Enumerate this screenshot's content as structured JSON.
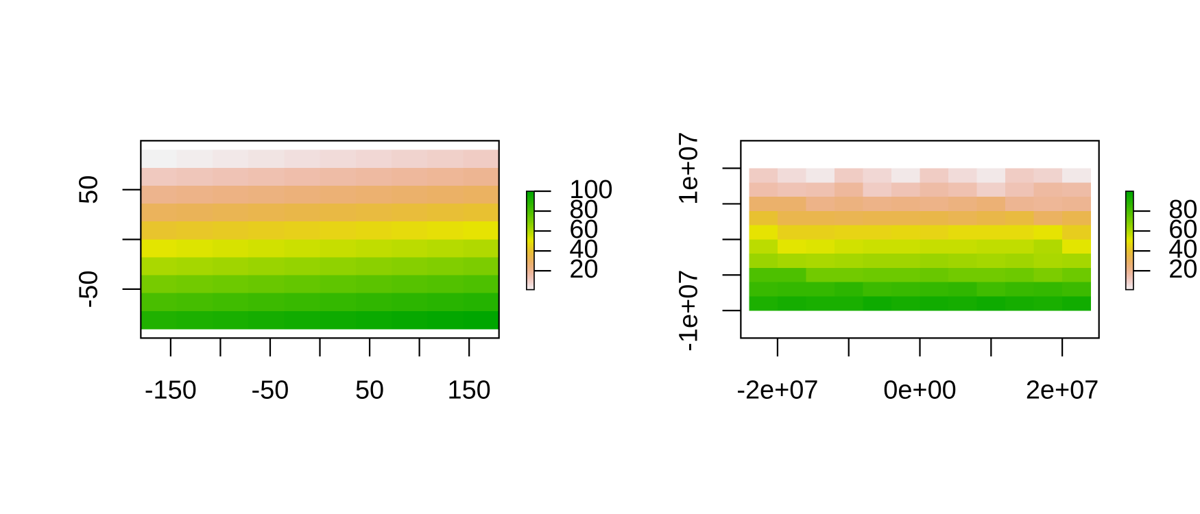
{
  "chart_data": [
    {
      "type": "heatmap",
      "colormap": "terrain-reversed",
      "xlim": [
        -180,
        180
      ],
      "ylim": [
        -99.2,
        99.2
      ],
      "xbins": [
        -180,
        -144,
        -108,
        -72,
        -36,
        0,
        36,
        72,
        108,
        144,
        180
      ],
      "ybins": [
        90,
        72,
        54,
        36,
        18,
        0,
        -18,
        -36,
        -54,
        -72,
        -90
      ],
      "values": [
        [
          1,
          2,
          3,
          4,
          5,
          6,
          7,
          8,
          9,
          10
        ],
        [
          11,
          12,
          13,
          14,
          15,
          16,
          17,
          18,
          19,
          20
        ],
        [
          21,
          22,
          23,
          24,
          25,
          26,
          27,
          28,
          29,
          30
        ],
        [
          31,
          32,
          33,
          34,
          35,
          36,
          37,
          38,
          39,
          40
        ],
        [
          41,
          42,
          43,
          44,
          45,
          46,
          47,
          48,
          49,
          50
        ],
        [
          51,
          52,
          53,
          54,
          55,
          56,
          57,
          58,
          59,
          60
        ],
        [
          61,
          62,
          63,
          64,
          65,
          66,
          67,
          68,
          69,
          70
        ],
        [
          71,
          72,
          73,
          74,
          75,
          76,
          77,
          78,
          79,
          80
        ],
        [
          81,
          82,
          83,
          84,
          85,
          86,
          87,
          88,
          89,
          90
        ],
        [
          91,
          92,
          93,
          94,
          95,
          96,
          97,
          98,
          99,
          100
        ]
      ],
      "xticks": [
        -150,
        {
          "value": -100,
          "label": null
        },
        -50,
        {
          "value": 0,
          "label": null
        },
        50,
        {
          "value": 100,
          "label": null
        },
        150
      ],
      "yticks": [
        -50,
        {
          "value": 0,
          "label": null
        },
        50
      ],
      "zlim": [
        1,
        100
      ],
      "zticks": [
        20,
        40,
        60,
        80,
        100
      ]
    },
    {
      "type": "heatmap",
      "colormap": "terrain-reversed",
      "xlim": [
        -25160000,
        25160000
      ],
      "ylim": [
        -13870000,
        13870000
      ],
      "xbins": [
        -24000000,
        -20000000,
        -16000000,
        -12000000,
        -8000000,
        -4000000,
        0,
        4000000,
        8000000,
        12000000,
        16000000,
        20000000,
        24000000
      ],
      "ybins": [
        10000000,
        8000000,
        6000000,
        4000000,
        2000000,
        0,
        -2000000,
        -4000000,
        -6000000,
        -8000000,
        -10000000
      ],
      "values": [
        [
          10,
          6,
          3,
          10,
          7,
          3,
          10,
          6,
          3,
          10,
          8,
          3
        ],
        [
          15,
          13,
          14,
          18,
          10,
          13,
          16,
          14,
          9,
          13,
          17,
          16
        ],
        [
          28,
          28,
          22,
          24,
          22,
          23,
          22,
          24,
          26,
          20,
          19,
          20
        ],
        [
          40,
          34,
          34,
          33,
          34,
          34,
          35,
          33,
          35,
          37,
          30,
          34
        ],
        [
          50,
          45,
          45,
          46,
          46,
          47,
          46,
          48,
          48,
          48,
          50,
          44
        ],
        [
          58,
          51,
          52,
          54,
          55,
          55,
          56,
          56,
          57,
          57,
          60,
          51
        ],
        [
          64,
          62,
          61,
          62,
          63,
          63,
          64,
          63,
          62,
          63,
          61,
          62
        ],
        [
          80,
          80,
          72,
          72,
          73,
          73,
          74,
          72,
          72,
          73,
          70,
          73
        ],
        [
          85,
          86,
          86,
          88,
          84,
          85,
          86,
          87,
          83,
          85,
          86,
          84
        ],
        [
          92,
          94,
          93,
          93,
          96,
          94,
          95,
          94,
          96,
          94,
          93,
          95
        ]
      ],
      "xticks": [
        {
          "value": -20000000,
          "label": "-2e+07"
        },
        {
          "value": -10000000,
          "label": null
        },
        {
          "value": 0,
          "label": "0e+00"
        },
        {
          "value": 10000000,
          "label": null
        },
        {
          "value": 20000000,
          "label": "2e+07"
        }
      ],
      "yticks": [
        {
          "value": -10000000,
          "label": "-1e+07"
        },
        {
          "value": -5000000,
          "label": null
        },
        {
          "value": 0,
          "label": null
        },
        {
          "value": 5000000,
          "label": null
        },
        {
          "value": 10000000,
          "label": "1e+07"
        }
      ],
      "zlim": [
        1,
        100
      ],
      "zticks": [
        20,
        40,
        60,
        80
      ]
    }
  ]
}
